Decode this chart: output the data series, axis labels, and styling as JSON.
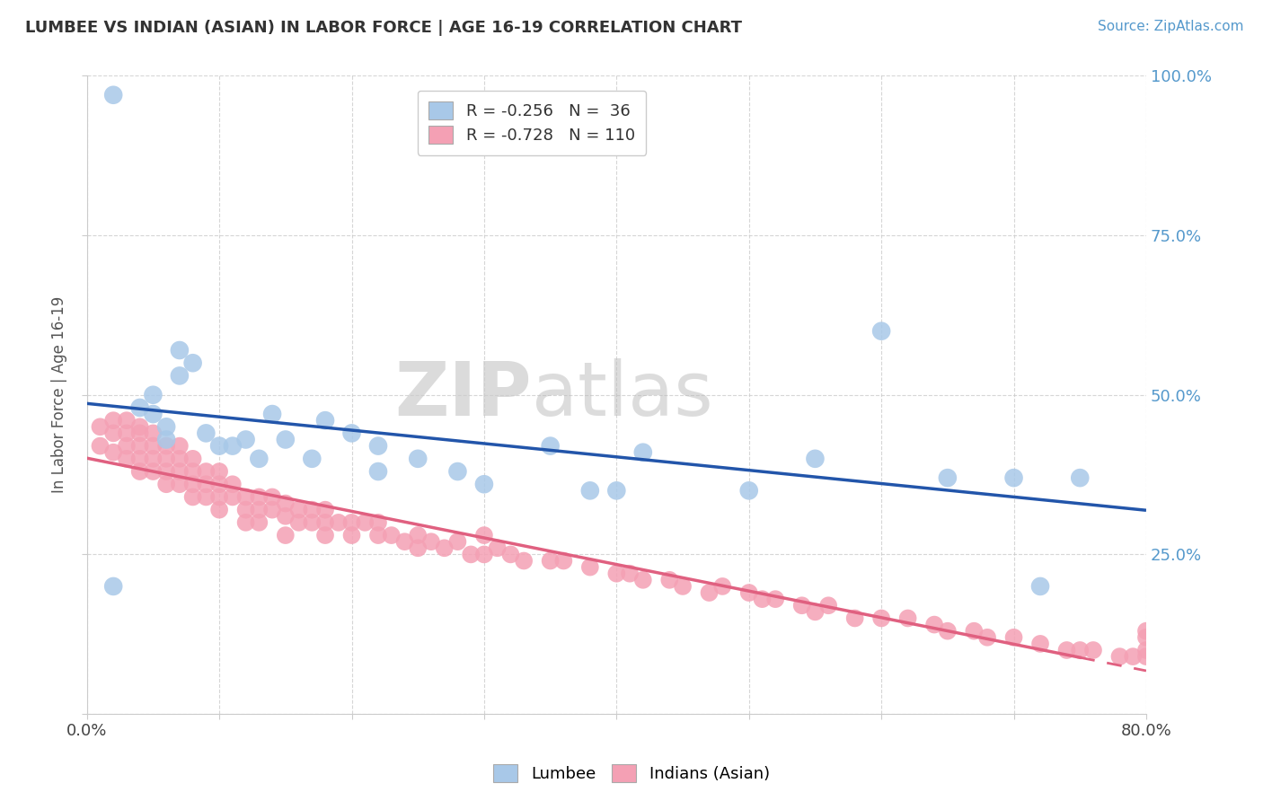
{
  "title": "LUMBEE VS INDIAN (ASIAN) IN LABOR FORCE | AGE 16-19 CORRELATION CHART",
  "source_text": "Source: ZipAtlas.com",
  "ylabel": "In Labor Force | Age 16-19",
  "xlim": [
    0.0,
    0.8
  ],
  "ylim": [
    0.0,
    1.0
  ],
  "legend_R1": "-0.256",
  "legend_N1": "36",
  "legend_R2": "-0.728",
  "legend_N2": "110",
  "blue_color": "#A8C8E8",
  "pink_color": "#F4A0B4",
  "blue_line_color": "#2255AA",
  "pink_line_color": "#E06080",
  "lumbee_x": [
    0.02,
    0.04,
    0.05,
    0.05,
    0.06,
    0.06,
    0.07,
    0.07,
    0.08,
    0.09,
    0.1,
    0.11,
    0.12,
    0.13,
    0.14,
    0.15,
    0.17,
    0.18,
    0.2,
    0.22,
    0.22,
    0.25,
    0.28,
    0.3,
    0.35,
    0.38,
    0.4,
    0.42,
    0.5,
    0.55,
    0.6,
    0.65,
    0.7,
    0.72,
    0.75,
    0.02
  ],
  "lumbee_y": [
    0.97,
    0.48,
    0.5,
    0.47,
    0.45,
    0.43,
    0.57,
    0.53,
    0.55,
    0.44,
    0.42,
    0.42,
    0.43,
    0.4,
    0.47,
    0.43,
    0.4,
    0.46,
    0.44,
    0.38,
    0.42,
    0.4,
    0.38,
    0.36,
    0.42,
    0.35,
    0.35,
    0.41,
    0.35,
    0.4,
    0.6,
    0.37,
    0.37,
    0.2,
    0.37,
    0.2
  ],
  "asian_x": [
    0.01,
    0.01,
    0.02,
    0.02,
    0.02,
    0.03,
    0.03,
    0.03,
    0.03,
    0.04,
    0.04,
    0.04,
    0.04,
    0.04,
    0.05,
    0.05,
    0.05,
    0.05,
    0.06,
    0.06,
    0.06,
    0.06,
    0.07,
    0.07,
    0.07,
    0.07,
    0.08,
    0.08,
    0.08,
    0.08,
    0.09,
    0.09,
    0.09,
    0.1,
    0.1,
    0.1,
    0.1,
    0.11,
    0.11,
    0.12,
    0.12,
    0.12,
    0.13,
    0.13,
    0.13,
    0.14,
    0.14,
    0.15,
    0.15,
    0.15,
    0.16,
    0.16,
    0.17,
    0.17,
    0.18,
    0.18,
    0.18,
    0.19,
    0.2,
    0.2,
    0.21,
    0.22,
    0.22,
    0.23,
    0.24,
    0.25,
    0.25,
    0.26,
    0.27,
    0.28,
    0.29,
    0.3,
    0.3,
    0.31,
    0.32,
    0.33,
    0.35,
    0.36,
    0.38,
    0.4,
    0.41,
    0.42,
    0.44,
    0.45,
    0.47,
    0.48,
    0.5,
    0.51,
    0.52,
    0.54,
    0.55,
    0.56,
    0.58,
    0.6,
    0.62,
    0.64,
    0.65,
    0.67,
    0.68,
    0.7,
    0.72,
    0.74,
    0.75,
    0.76,
    0.78,
    0.79,
    0.8,
    0.8,
    0.8,
    0.8
  ],
  "asian_y": [
    0.45,
    0.42,
    0.46,
    0.44,
    0.41,
    0.46,
    0.44,
    0.42,
    0.4,
    0.45,
    0.44,
    0.42,
    0.4,
    0.38,
    0.44,
    0.42,
    0.4,
    0.38,
    0.42,
    0.4,
    0.38,
    0.36,
    0.42,
    0.4,
    0.38,
    0.36,
    0.4,
    0.38,
    0.36,
    0.34,
    0.38,
    0.36,
    0.34,
    0.38,
    0.36,
    0.34,
    0.32,
    0.36,
    0.34,
    0.34,
    0.32,
    0.3,
    0.34,
    0.32,
    0.3,
    0.34,
    0.32,
    0.33,
    0.31,
    0.28,
    0.32,
    0.3,
    0.32,
    0.3,
    0.32,
    0.3,
    0.28,
    0.3,
    0.3,
    0.28,
    0.3,
    0.3,
    0.28,
    0.28,
    0.27,
    0.28,
    0.26,
    0.27,
    0.26,
    0.27,
    0.25,
    0.28,
    0.25,
    0.26,
    0.25,
    0.24,
    0.24,
    0.24,
    0.23,
    0.22,
    0.22,
    0.21,
    0.21,
    0.2,
    0.19,
    0.2,
    0.19,
    0.18,
    0.18,
    0.17,
    0.16,
    0.17,
    0.15,
    0.15,
    0.15,
    0.14,
    0.13,
    0.13,
    0.12,
    0.12,
    0.11,
    0.1,
    0.1,
    0.1,
    0.09,
    0.09,
    0.13,
    0.12,
    0.1,
    0.09
  ]
}
